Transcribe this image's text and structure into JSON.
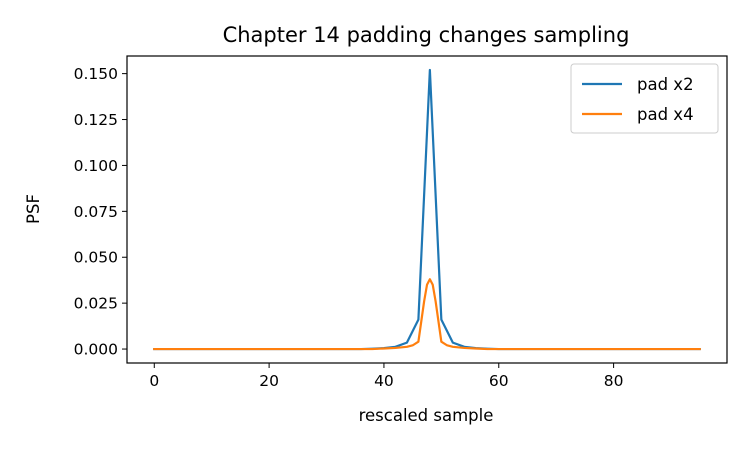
{
  "chart_data": {
    "type": "line",
    "title": "Chapter 14 padding changes sampling",
    "xlabel": "rescaled sample",
    "ylabel": "PSF",
    "xlim": [
      -4.75,
      99.75
    ],
    "ylim": [
      -0.0076,
      0.1596
    ],
    "xticks": [
      0,
      20,
      40,
      60,
      80
    ],
    "xtick_labels": [
      "0",
      "20",
      "40",
      "60",
      "80"
    ],
    "yticks": [
      0.0,
      0.025,
      0.05,
      0.075,
      0.1,
      0.125,
      0.15
    ],
    "ytick_labels": [
      "0.000",
      "0.025",
      "0.050",
      "0.075",
      "0.100",
      "0.125",
      "0.150"
    ],
    "legend_position": "top-right",
    "grid": false,
    "series": [
      {
        "name": "pad x2",
        "color": "#1f77b4",
        "x": [
          0,
          36,
          38,
          40,
          42,
          44,
          46,
          48,
          50,
          52,
          54,
          56,
          58,
          60,
          95
        ],
        "y": [
          0,
          0,
          0.0002,
          0.0005,
          0.0012,
          0.0035,
          0.016,
          0.152,
          0.016,
          0.0035,
          0.0012,
          0.0005,
          0.0002,
          0,
          0
        ]
      },
      {
        "name": "pad x4",
        "color": "#ff7f0e",
        "x": [
          0,
          38,
          40,
          42,
          44,
          45,
          46,
          47,
          47.5,
          48,
          48.5,
          49,
          50,
          51,
          52,
          54,
          56,
          58,
          95
        ],
        "y": [
          0,
          0,
          0.0003,
          0.0006,
          0.0012,
          0.002,
          0.004,
          0.026,
          0.035,
          0.038,
          0.035,
          0.026,
          0.004,
          0.002,
          0.0012,
          0.0006,
          0.0003,
          0,
          0
        ]
      }
    ]
  }
}
